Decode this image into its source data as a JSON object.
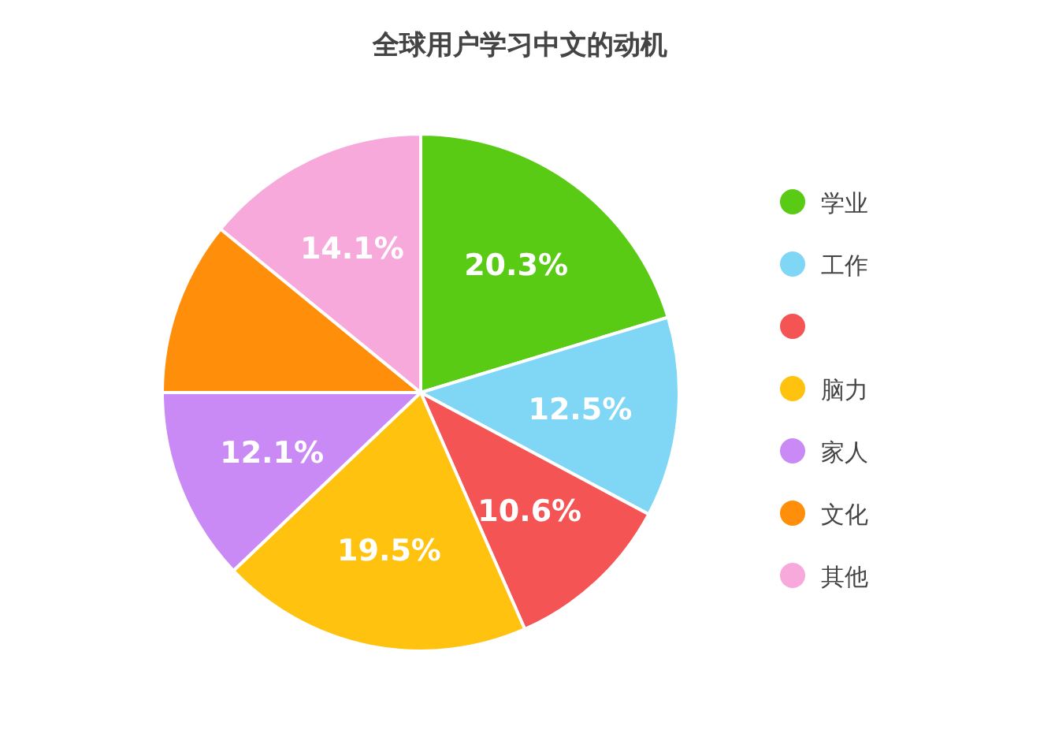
{
  "chart_data": {
    "type": "pie",
    "title": "全球用户学习中文的动机",
    "categories": [
      "学业",
      "工作",
      null,
      "脑力",
      "家人",
      "文化",
      "其他"
    ],
    "values": [
      20.3,
      12.5,
      10.6,
      19.5,
      12.1,
      10.9,
      14.1
    ],
    "value_labels": [
      "20.3%",
      "12.5%",
      "10.6%",
      "19.5%",
      "12.1%",
      null,
      "14.1%"
    ],
    "colors": [
      "#5acb14",
      "#7fd6f5",
      "#f45454",
      "#ffc20e",
      "#c98af5",
      "#ff8f0a",
      "#f7a9dc"
    ],
    "legend": "right"
  }
}
